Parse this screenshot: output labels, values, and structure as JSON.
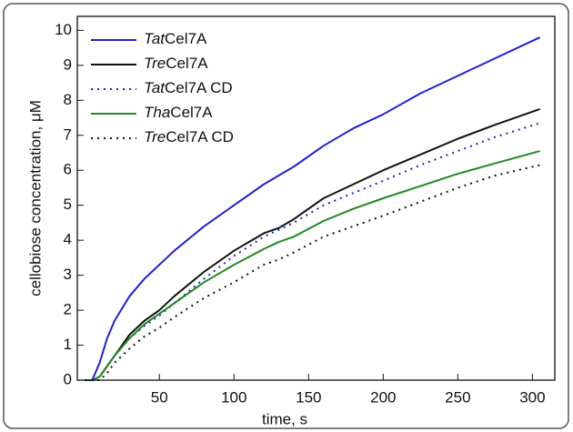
{
  "chart_data": {
    "type": "line",
    "xlabel": "time, s",
    "ylabel": "cellobiose concentration, μM",
    "x": [
      0,
      5,
      10,
      15,
      20,
      30,
      40,
      50,
      60,
      80,
      100,
      120,
      130,
      140,
      160,
      180,
      200,
      225,
      250,
      275,
      305
    ],
    "series": [
      {
        "name": "TatCel7A",
        "color": "#1f1fd6",
        "linestyle": "solid",
        "values": [
          0,
          0,
          0.5,
          1.2,
          1.7,
          2.4,
          2.9,
          3.3,
          3.7,
          4.4,
          5.0,
          5.6,
          5.85,
          6.1,
          6.7,
          7.2,
          7.6,
          8.2,
          8.7,
          9.2,
          9.8
        ]
      },
      {
        "name": "TreCel7A",
        "color": "#111111",
        "linestyle": "solid",
        "values": [
          0,
          0,
          0.1,
          0.4,
          0.7,
          1.3,
          1.7,
          2.0,
          2.4,
          3.1,
          3.7,
          4.2,
          4.35,
          4.6,
          5.2,
          5.6,
          6.0,
          6.45,
          6.9,
          7.3,
          7.75
        ]
      },
      {
        "name": "TatCel7A CD",
        "color": "#1f1fd6",
        "linestyle": "dotted",
        "values": [
          0,
          0,
          0.1,
          0.4,
          0.7,
          1.2,
          1.55,
          1.85,
          2.2,
          2.9,
          3.55,
          4.1,
          4.3,
          4.5,
          5.0,
          5.35,
          5.7,
          6.15,
          6.55,
          6.95,
          7.35
        ]
      },
      {
        "name": "ThaCel7A",
        "color": "#1e8a1e",
        "linestyle": "solid",
        "values": [
          0,
          0,
          0.1,
          0.4,
          0.7,
          1.2,
          1.6,
          1.9,
          2.2,
          2.8,
          3.3,
          3.75,
          3.95,
          4.1,
          4.55,
          4.9,
          5.2,
          5.55,
          5.9,
          6.2,
          6.55
        ]
      },
      {
        "name": "TreCel7A CD",
        "color": "#111111",
        "linestyle": "dotted",
        "values": [
          0,
          0,
          0,
          0.2,
          0.5,
          0.9,
          1.25,
          1.5,
          1.8,
          2.35,
          2.8,
          3.3,
          3.45,
          3.65,
          4.1,
          4.4,
          4.7,
          5.1,
          5.5,
          5.85,
          6.15
        ]
      }
    ],
    "xlim": [
      -5,
      315
    ],
    "xticks": [
      50,
      100,
      150,
      200,
      250,
      300
    ],
    "ylim": [
      0,
      10.4
    ],
    "yticks": [
      0,
      1,
      2,
      3,
      4,
      5,
      6,
      7,
      8,
      9,
      10
    ],
    "legend": "upper left"
  }
}
